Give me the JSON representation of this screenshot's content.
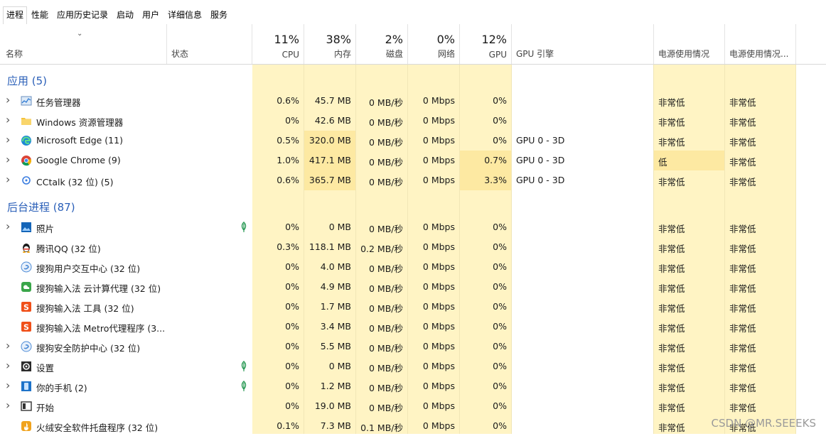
{
  "tabs": [
    {
      "label": "进程"
    },
    {
      "label": "性能"
    },
    {
      "label": "应用历史记录"
    },
    {
      "label": "启动"
    },
    {
      "label": "用户"
    },
    {
      "label": "详细信息"
    },
    {
      "label": "服务"
    }
  ],
  "header": {
    "name": "名称",
    "status": "状态",
    "cpu_pct": "11%",
    "cpu": "CPU",
    "mem_pct": "38%",
    "mem": "内存",
    "disk_pct": "2%",
    "disk": "磁盘",
    "net_pct": "0%",
    "net": "网络",
    "gpu_pct": "12%",
    "gpu": "GPU",
    "gpu_engine": "GPU 引擎",
    "power": "电源使用情况",
    "power_trend": "电源使用情况..."
  },
  "groups": {
    "apps": "应用 (5)",
    "background": "后台进程 (87)"
  },
  "apps": [
    {
      "name": "任务管理器",
      "cpu": "0.6%",
      "mem": "45.7 MB",
      "disk": "0 MB/秒",
      "net": "0 Mbps",
      "gpu": "0%",
      "engine": "",
      "power": "非常低",
      "trend": "非常低",
      "icon": "task-manager-icon"
    },
    {
      "name": "Windows 资源管理器",
      "cpu": "0%",
      "mem": "42.6 MB",
      "disk": "0 MB/秒",
      "net": "0 Mbps",
      "gpu": "0%",
      "engine": "",
      "power": "非常低",
      "trend": "非常低",
      "icon": "folder-icon"
    },
    {
      "name": "Microsoft Edge (11)",
      "cpu": "0.5%",
      "mem": "320.0 MB",
      "disk": "0 MB/秒",
      "net": "0 Mbps",
      "gpu": "0%",
      "engine": "GPU 0 - 3D",
      "power": "非常低",
      "trend": "非常低",
      "icon": "edge-icon"
    },
    {
      "name": "Google Chrome (9)",
      "cpu": "1.0%",
      "mem": "417.1 MB",
      "disk": "0 MB/秒",
      "net": "0 Mbps",
      "gpu": "0.7%",
      "engine": "GPU 0 - 3D",
      "power": "低",
      "trend": "非常低",
      "icon": "chrome-icon"
    },
    {
      "name": "CCtalk (32 位) (5)",
      "cpu": "0.6%",
      "mem": "365.7 MB",
      "disk": "0 MB/秒",
      "net": "0 Mbps",
      "gpu": "3.3%",
      "engine": "GPU 0 - 3D",
      "power": "非常低",
      "trend": "非常低",
      "icon": "cctalk-icon"
    }
  ],
  "background": [
    {
      "name": "照片",
      "cpu": "0%",
      "mem": "0 MB",
      "disk": "0 MB/秒",
      "net": "0 Mbps",
      "gpu": "0%",
      "power": "非常低",
      "trend": "非常低",
      "icon": "photos-icon",
      "expand": true,
      "leaf": true
    },
    {
      "name": "腾讯QQ (32 位)",
      "cpu": "0.3%",
      "mem": "118.1 MB",
      "disk": "0.2 MB/秒",
      "net": "0 Mbps",
      "gpu": "0%",
      "power": "非常低",
      "trend": "非常低",
      "icon": "qq-icon",
      "expand": false,
      "leaf": false
    },
    {
      "name": "搜狗用户交互中心 (32 位)",
      "cpu": "0%",
      "mem": "4.0 MB",
      "disk": "0 MB/秒",
      "net": "0 Mbps",
      "gpu": "0%",
      "power": "非常低",
      "trend": "非常低",
      "icon": "sogou-interaction-icon",
      "expand": false,
      "leaf": false
    },
    {
      "name": "搜狗输入法 云计算代理 (32 位)",
      "cpu": "0%",
      "mem": "4.9 MB",
      "disk": "0 MB/秒",
      "net": "0 Mbps",
      "gpu": "0%",
      "power": "非常低",
      "trend": "非常低",
      "icon": "sogou-cloud-icon",
      "expand": false,
      "leaf": false
    },
    {
      "name": "搜狗输入法 工具 (32 位)",
      "cpu": "0%",
      "mem": "1.7 MB",
      "disk": "0 MB/秒",
      "net": "0 Mbps",
      "gpu": "0%",
      "power": "非常低",
      "trend": "非常低",
      "icon": "sogou-ime-icon",
      "expand": false,
      "leaf": false
    },
    {
      "name": "搜狗输入法 Metro代理程序 (3...",
      "cpu": "0%",
      "mem": "3.4 MB",
      "disk": "0 MB/秒",
      "net": "0 Mbps",
      "gpu": "0%",
      "power": "非常低",
      "trend": "非常低",
      "icon": "sogou-ime-icon",
      "expand": false,
      "leaf": false
    },
    {
      "name": "搜狗安全防护中心 (32 位)",
      "cpu": "0%",
      "mem": "5.5 MB",
      "disk": "0 MB/秒",
      "net": "0 Mbps",
      "gpu": "0%",
      "power": "非常低",
      "trend": "非常低",
      "icon": "sogou-interaction-icon",
      "expand": true,
      "leaf": false
    },
    {
      "name": "设置",
      "cpu": "0%",
      "mem": "0 MB",
      "disk": "0 MB/秒",
      "net": "0 Mbps",
      "gpu": "0%",
      "power": "非常低",
      "trend": "非常低",
      "icon": "settings-icon",
      "expand": true,
      "leaf": true
    },
    {
      "name": "你的手机 (2)",
      "cpu": "0%",
      "mem": "1.2 MB",
      "disk": "0 MB/秒",
      "net": "0 Mbps",
      "gpu": "0%",
      "power": "非常低",
      "trend": "非常低",
      "icon": "your-phone-icon",
      "expand": true,
      "leaf": true
    },
    {
      "name": "开始",
      "cpu": "0%",
      "mem": "19.0 MB",
      "disk": "0 MB/秒",
      "net": "0 Mbps",
      "gpu": "0%",
      "power": "非常低",
      "trend": "非常低",
      "icon": "start-icon",
      "expand": true,
      "leaf": false
    },
    {
      "name": "火绒安全软件托盘程序 (32 位)",
      "cpu": "0.1%",
      "mem": "7.3 MB",
      "disk": "0.1 MB/秒",
      "net": "0 Mbps",
      "gpu": "0%",
      "power": "非常低",
      "trend": "非常低",
      "icon": "huorong-icon",
      "expand": false,
      "leaf": false
    }
  ],
  "watermark": "CSDN @MR.SEEEKS",
  "colors": {
    "heat_light": "#fff4c4",
    "heat_mid": "#fde9a2",
    "heat_strong": "#f9dd8a",
    "group_blue": "#2a5fb8"
  }
}
